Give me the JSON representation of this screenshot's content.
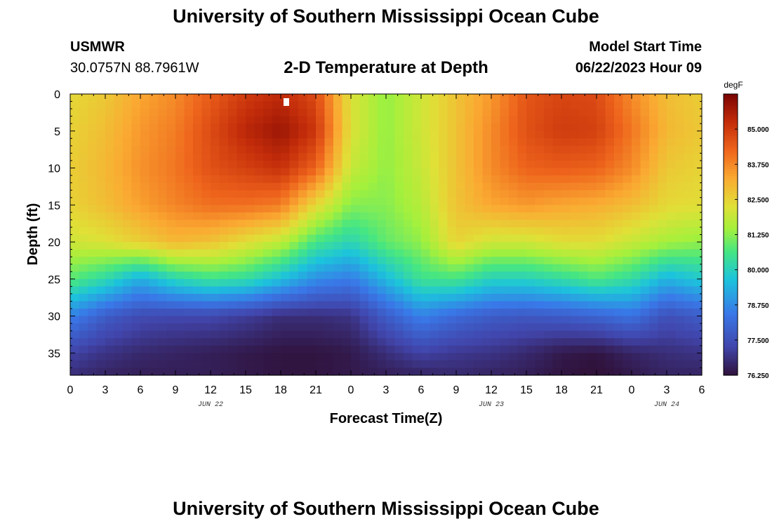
{
  "header": {
    "title": "University of Southern Mississippi Ocean Cube",
    "station_name": "USMWR",
    "station_coords": "30.0757N  88.7961W",
    "plot_title": "2-D Temperature at Depth",
    "model_start_label": "Model Start Time",
    "model_start_value": "06/22/2023 Hour 09"
  },
  "footer": {
    "title": "University of Southern Mississippi Ocean Cube"
  },
  "chart_data": {
    "type": "heatmap",
    "title": "2-D Temperature at Depth",
    "xlabel": "Forecast Time(Z)",
    "ylabel": "Depth (ft)",
    "colorbar_unit": "degF",
    "colorbar_ticks": [
      "85.000",
      "83.750",
      "82.500",
      "81.250",
      "80.000",
      "78.750",
      "77.500",
      "76.250"
    ],
    "color_range": [
      76.25,
      86.25
    ],
    "x_range_hours": [
      0,
      54
    ],
    "y_range_ft": [
      0,
      38
    ],
    "x_ticks": [
      "0",
      "3",
      "6",
      "9",
      "12",
      "15",
      "18",
      "21",
      "0",
      "3",
      "6",
      "9",
      "12",
      "15",
      "18",
      "21",
      "0",
      "3",
      "6"
    ],
    "x_tick_hours": [
      0,
      3,
      6,
      9,
      12,
      15,
      18,
      21,
      24,
      27,
      30,
      33,
      36,
      39,
      42,
      45,
      48,
      51,
      54
    ],
    "y_ticks": [
      "0",
      "5",
      "10",
      "15",
      "20",
      "25",
      "30",
      "35"
    ],
    "y_tick_values": [
      0,
      5,
      10,
      15,
      20,
      25,
      30,
      35
    ],
    "date_labels": [
      {
        "text": "JUN 22",
        "hour": 12
      },
      {
        "text": "JUN 23",
        "hour": 36
      },
      {
        "text": "JUN 24",
        "hour": 51
      }
    ],
    "sample_hours": [
      0,
      3,
      6,
      9,
      12,
      15,
      18,
      21,
      24,
      27,
      30,
      33,
      36,
      39,
      42,
      45,
      48,
      51,
      54
    ],
    "sample_depths_ft": [
      0,
      5,
      10,
      15,
      20,
      25,
      30,
      35,
      38
    ],
    "temperatures_degF": [
      [
        82.4,
        82.5,
        82.6,
        82.5,
        82.0,
        80.8,
        78.6,
        77.2,
        76.8
      ],
      [
        82.7,
        82.9,
        83.0,
        82.9,
        82.2,
        80.2,
        77.8,
        76.9,
        76.6
      ],
      [
        83.3,
        83.5,
        83.6,
        83.4,
        82.6,
        79.3,
        77.4,
        76.7,
        76.5
      ],
      [
        83.7,
        83.9,
        84.0,
        83.8,
        83.0,
        80.1,
        77.3,
        76.6,
        76.5
      ],
      [
        84.4,
        84.7,
        84.6,
        84.1,
        82.8,
        80.5,
        77.3,
        76.5,
        76.5
      ],
      [
        85.0,
        85.4,
        84.9,
        84.1,
        82.3,
        80.3,
        77.1,
        76.4,
        76.4
      ],
      [
        85.3,
        85.8,
        85.2,
        83.9,
        81.8,
        79.6,
        76.8,
        76.3,
        76.3
      ],
      [
        84.7,
        85.1,
        84.3,
        82.4,
        80.6,
        78.8,
        76.8,
        76.3,
        76.3
      ],
      [
        82.2,
        82.2,
        81.9,
        81.2,
        80.1,
        78.5,
        76.9,
        76.4,
        76.4
      ],
      [
        81.3,
        81.3,
        81.3,
        81.2,
        80.9,
        79.5,
        77.8,
        76.8,
        76.5
      ],
      [
        82.0,
        82.0,
        81.9,
        81.7,
        81.3,
        80.5,
        78.6,
        77.2,
        76.6
      ],
      [
        82.8,
        82.8,
        82.8,
        82.8,
        82.5,
        80.6,
        78.1,
        77.0,
        76.7
      ],
      [
        83.5,
        83.7,
        83.7,
        83.3,
        82.0,
        80.0,
        77.8,
        76.9,
        76.6
      ],
      [
        84.5,
        84.6,
        84.3,
        83.5,
        82.0,
        80.0,
        77.7,
        76.7,
        76.5
      ],
      [
        84.8,
        85.0,
        84.4,
        83.3,
        82.3,
        80.3,
        77.8,
        76.4,
        76.3
      ],
      [
        84.7,
        84.9,
        84.3,
        83.2,
        82.3,
        80.7,
        78.0,
        76.3,
        76.2
      ],
      [
        83.7,
        84.0,
        83.7,
        82.9,
        81.9,
        80.3,
        78.3,
        76.6,
        76.4
      ],
      [
        82.9,
        83.0,
        82.7,
        82.4,
        81.5,
        79.4,
        77.5,
        76.8,
        76.6
      ],
      [
        82.6,
        82.7,
        82.5,
        82.3,
        81.3,
        79.8,
        77.8,
        76.9,
        76.6
      ]
    ]
  }
}
